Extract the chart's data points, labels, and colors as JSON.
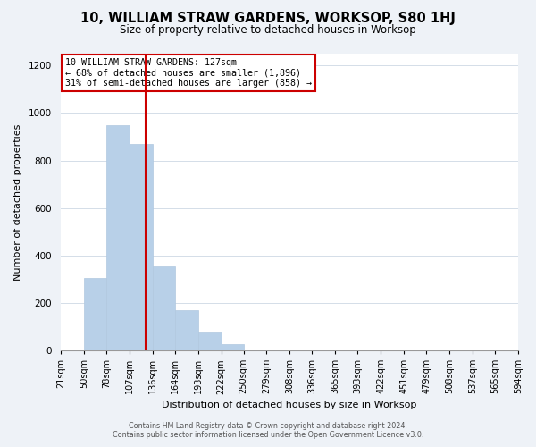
{
  "title": "10, WILLIAM STRAW GARDENS, WORKSOP, S80 1HJ",
  "subtitle": "Size of property relative to detached houses in Worksop",
  "xlabel": "Distribution of detached houses by size in Worksop",
  "ylabel": "Number of detached properties",
  "footer_line1": "Contains HM Land Registry data © Crown copyright and database right 2024.",
  "footer_line2": "Contains public sector information licensed under the Open Government Licence v3.0.",
  "annotation_line1": "10 WILLIAM STRAW GARDENS: 127sqm",
  "annotation_line2": "← 68% of detached houses are smaller (1,896)",
  "annotation_line3": "31% of semi-detached houses are larger (858) →",
  "bar_edges": [
    21,
    50,
    78,
    107,
    136,
    164,
    193,
    222,
    250,
    279,
    308,
    336,
    365,
    393,
    422,
    451,
    479,
    508,
    537,
    565,
    594
  ],
  "bar_heights": [
    0,
    305,
    950,
    870,
    355,
    170,
    80,
    25,
    5,
    0,
    0,
    0,
    0,
    0,
    0,
    0,
    0,
    0,
    0,
    0
  ],
  "bar_color": "#b8d0e8",
  "bar_edgecolor": "#b0c8e0",
  "vline_x": 127,
  "vline_color": "#cc0000",
  "annotation_box_edgecolor": "#cc0000",
  "ylim": [
    0,
    1250
  ],
  "yticks": [
    0,
    200,
    400,
    600,
    800,
    1000,
    1200
  ],
  "grid_color": "#d4dde8",
  "background_color": "#eef2f7",
  "plot_bg_color": "#ffffff",
  "title_fontsize": 10.5,
  "subtitle_fontsize": 8.5,
  "xlabel_fontsize": 8,
  "ylabel_fontsize": 8,
  "tick_fontsize": 7,
  "annotation_fontsize": 7.2,
  "footer_fontsize": 5.8
}
